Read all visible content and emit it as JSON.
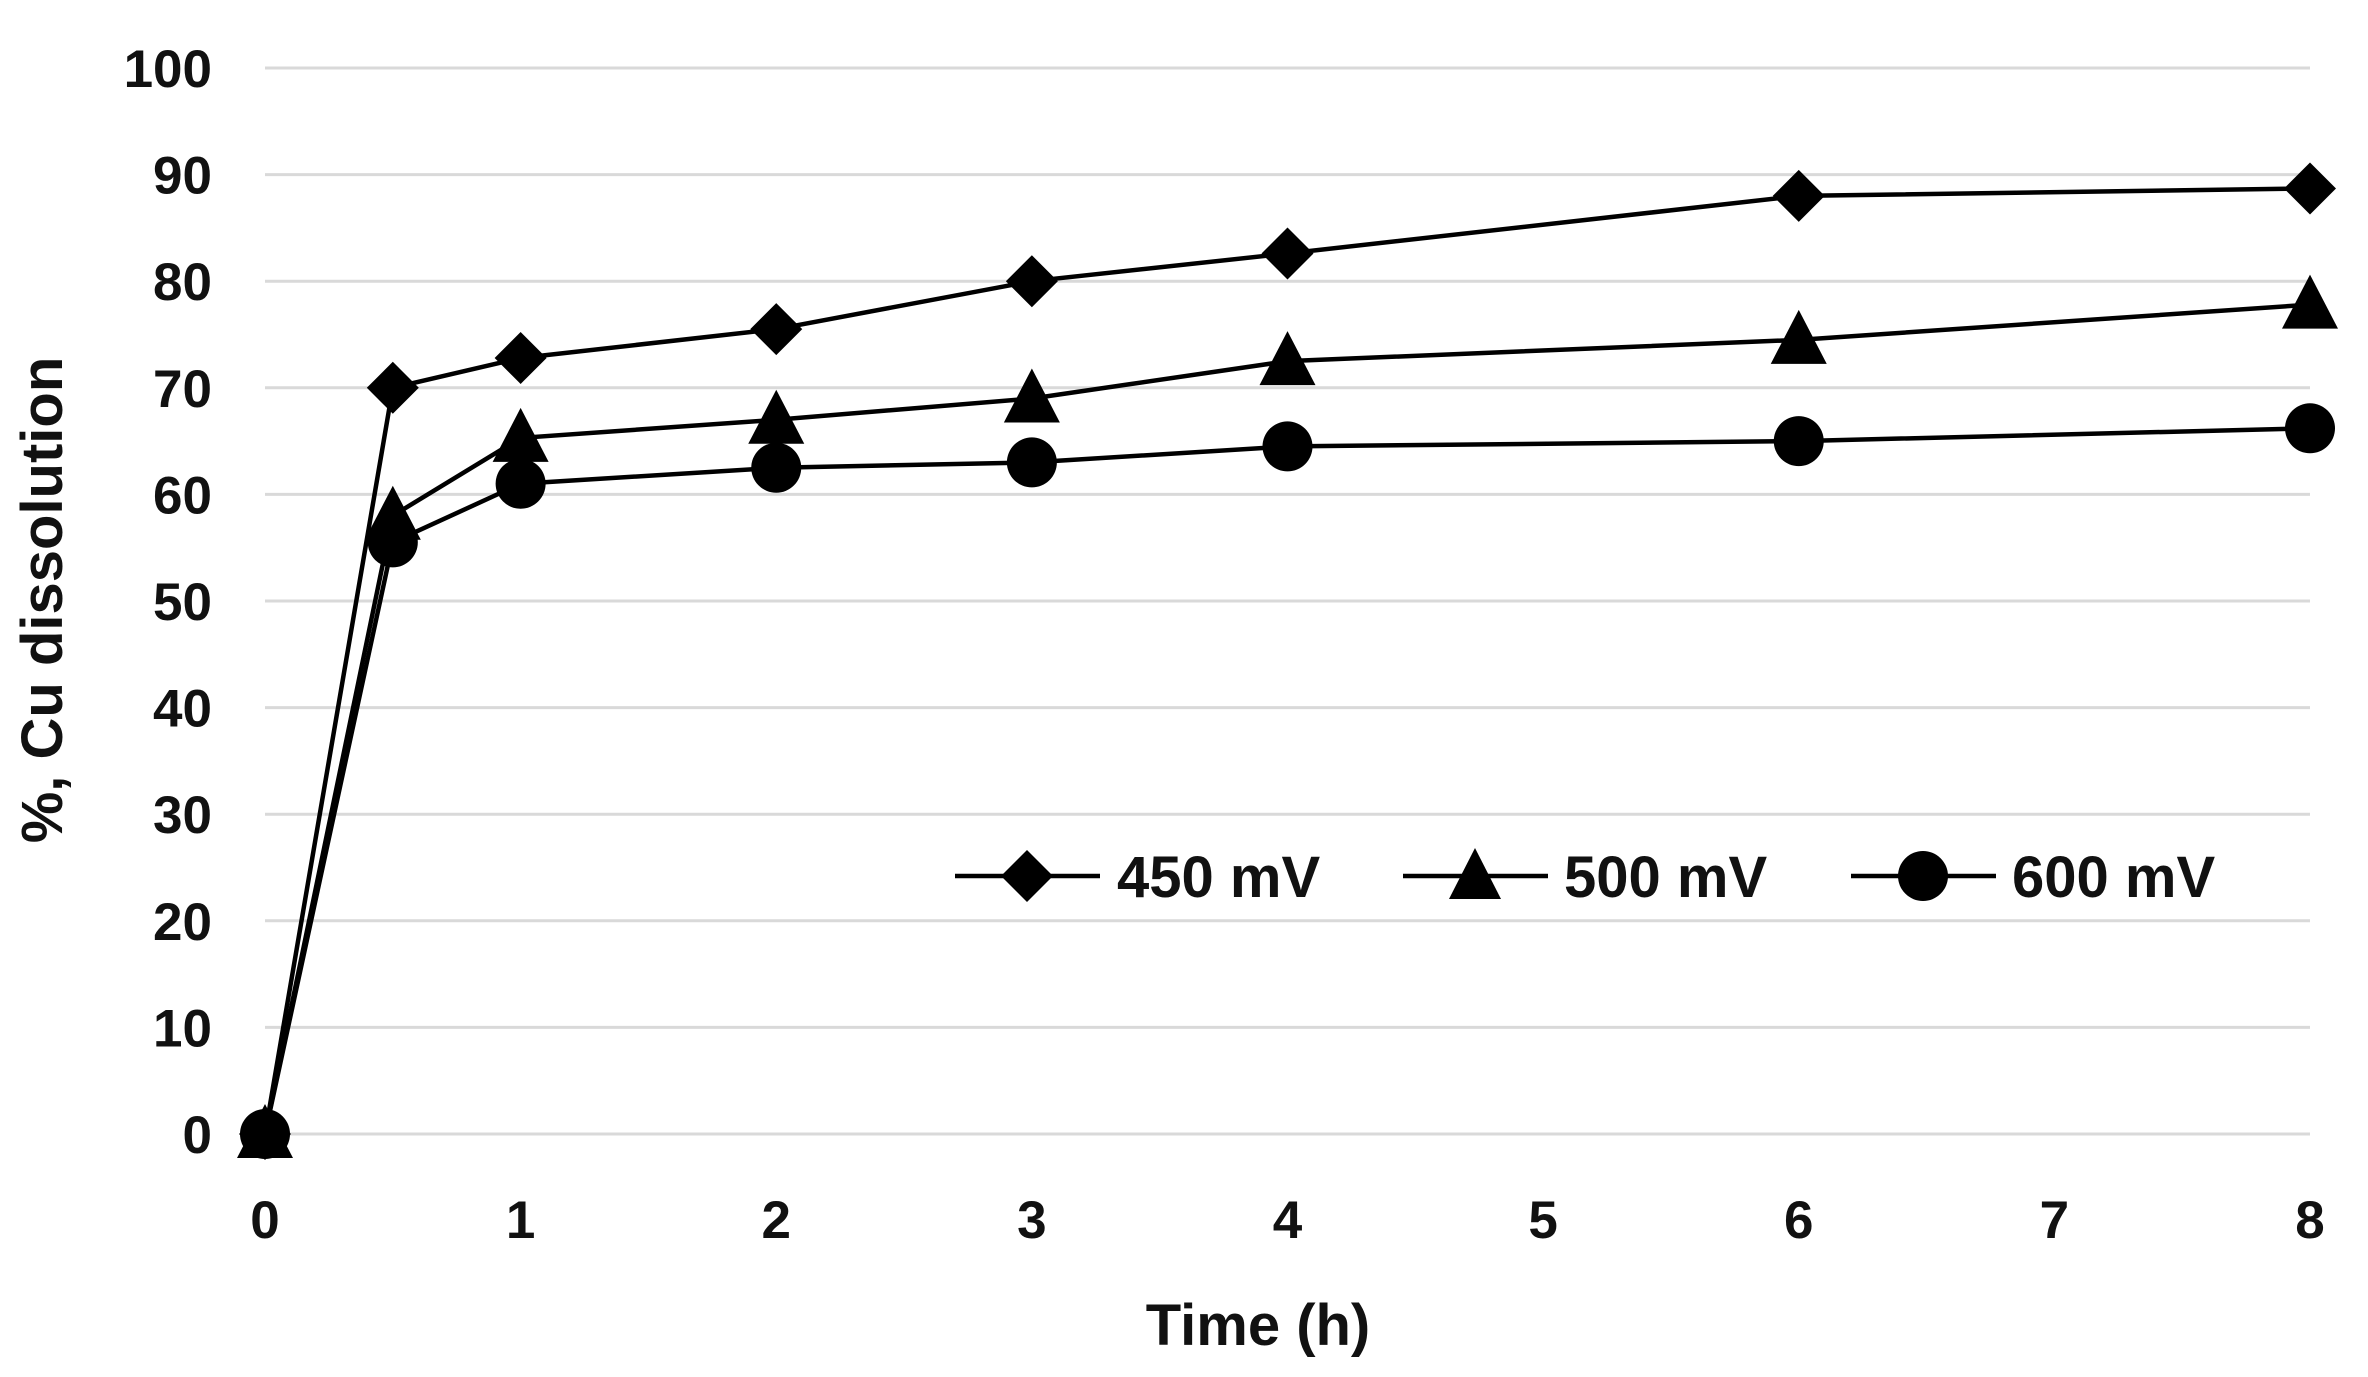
{
  "chart_data": {
    "type": "line",
    "title": "",
    "xlabel": "Time (h)",
    "ylabel": "%, Cu dissolution",
    "x_ticks": [
      0,
      1,
      2,
      3,
      4,
      5,
      6,
      7,
      8
    ],
    "y_ticks": [
      0,
      10,
      20,
      30,
      40,
      50,
      60,
      70,
      80,
      90,
      100
    ],
    "xlim": [
      0,
      8
    ],
    "ylim": [
      0,
      100
    ],
    "grid": "horizontal",
    "legend_position": "center-right",
    "series": [
      {
        "name": "450 mV",
        "marker": "diamond",
        "x": [
          0,
          0.5,
          1,
          2,
          3,
          4,
          6,
          8
        ],
        "y": [
          0,
          70,
          72.8,
          75.5,
          80,
          82.6,
          88,
          88.7
        ]
      },
      {
        "name": "500 mV",
        "marker": "triangle",
        "x": [
          0,
          0.5,
          1,
          2,
          3,
          4,
          6,
          8
        ],
        "y": [
          0,
          58,
          65.3,
          67,
          69,
          72.5,
          74.5,
          77.8
        ]
      },
      {
        "name": "600 mV",
        "marker": "circle",
        "x": [
          0,
          0.5,
          1,
          2,
          3,
          4,
          6,
          8
        ],
        "y": [
          0,
          55.5,
          61,
          62.5,
          63,
          64.5,
          65,
          66.2
        ]
      }
    ]
  },
  "colors": {
    "series": "#000000",
    "grid": "#d9d9d9",
    "text": "#111111",
    "background": "#ffffff"
  }
}
